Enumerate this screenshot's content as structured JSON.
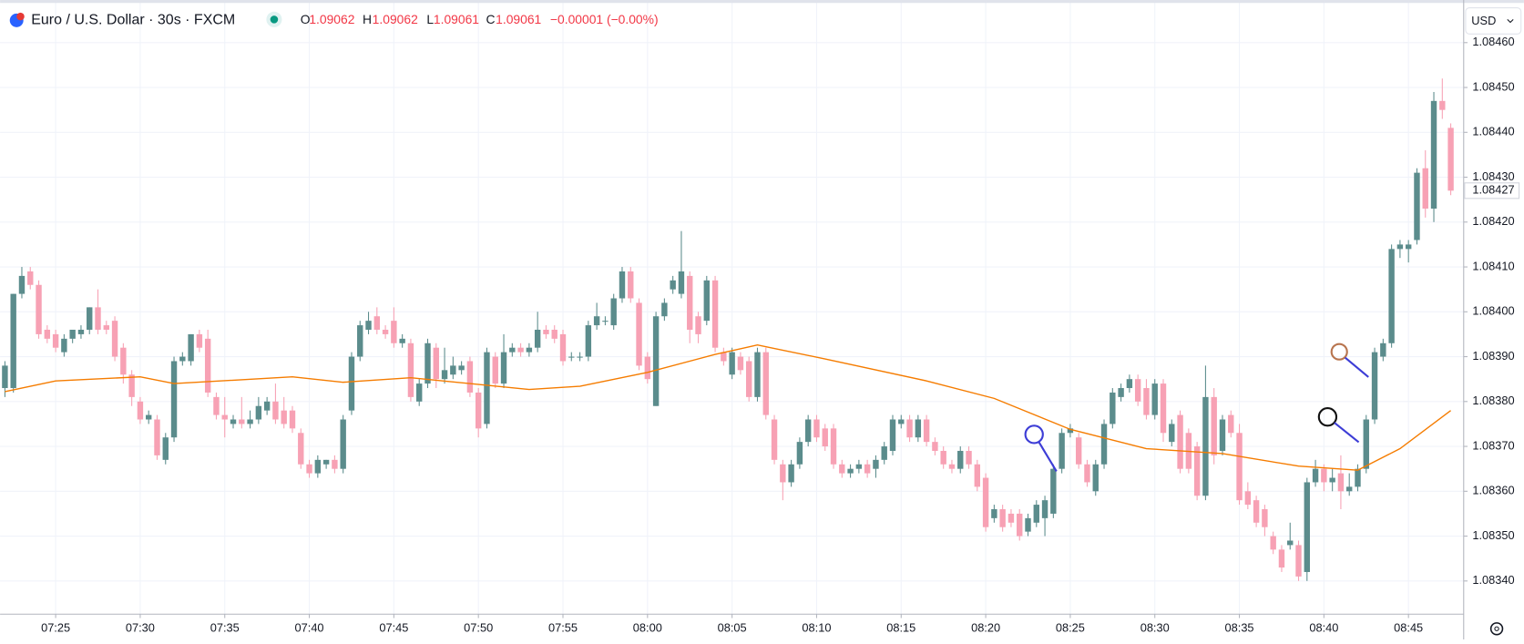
{
  "chart_data": {
    "type": "candlestick",
    "title": "Euro / U.S. Dollar · 30s · FXCM",
    "up_color": "#5b8c8c",
    "down_color": "#f7a1b4",
    "grid": true,
    "ylim": [
      1.083326,
      1.084695
    ],
    "yticks": [
      {
        "value": 1.0846,
        "label": "1.08460"
      },
      {
        "value": 1.0845,
        "label": "1.08450"
      },
      {
        "value": 1.0844,
        "label": "1.08440"
      },
      {
        "value": 1.0843,
        "label": "1.08430"
      },
      {
        "value": 1.0842,
        "label": "1.08420"
      },
      {
        "value": 1.0841,
        "label": "1.08410"
      },
      {
        "value": 1.084,
        "label": "1.08400"
      },
      {
        "value": 1.0839,
        "label": "1.08390"
      },
      {
        "value": 1.0838,
        "label": "1.08380"
      },
      {
        "value": 1.0837,
        "label": "1.08370"
      },
      {
        "value": 1.0836,
        "label": "1.08360"
      },
      {
        "value": 1.0835,
        "label": "1.08350"
      },
      {
        "value": 1.0834,
        "label": "1.08340"
      }
    ],
    "xticks": [
      {
        "value": 6,
        "label": "07:25"
      },
      {
        "value": 16,
        "label": "07:30"
      },
      {
        "value": 26,
        "label": "07:35"
      },
      {
        "value": 36,
        "label": "07:40"
      },
      {
        "value": 46,
        "label": "07:45"
      },
      {
        "value": 56,
        "label": "07:50"
      },
      {
        "value": 66,
        "label": "07:55"
      },
      {
        "value": 76,
        "label": "08:00"
      },
      {
        "value": 86,
        "label": "08:05"
      },
      {
        "value": 96,
        "label": "08:10"
      },
      {
        "value": 106,
        "label": "08:15"
      },
      {
        "value": 116,
        "label": "08:20"
      },
      {
        "value": 126,
        "label": "08:25"
      },
      {
        "value": 136,
        "label": "08:30"
      },
      {
        "value": 146,
        "label": "08:35"
      },
      {
        "value": 156,
        "label": "08:40"
      },
      {
        "value": 166,
        "label": "08:45"
      }
    ],
    "open": [
      1.08383,
      1.08383,
      1.08404,
      1.08409,
      1.08406,
      1.08396,
      1.08395,
      1.08391,
      1.08394,
      1.08395,
      1.08396,
      1.08401,
      1.08397,
      1.08398,
      1.08392,
      1.08386,
      1.0838,
      1.08376,
      1.08376,
      1.08367,
      1.08372,
      1.08389,
      1.08389,
      1.08395,
      1.08394,
      1.08381,
      1.08377,
      1.08375,
      1.08376,
      1.08375,
      1.08376,
      1.08378,
      1.0838,
      1.08378,
      1.08378,
      1.08373,
      1.08366,
      1.08364,
      1.08366,
      1.08367,
      1.08365,
      1.08378,
      1.0839,
      1.08396,
      1.08399,
      1.08396,
      1.08398,
      1.08393,
      1.08393,
      1.0838,
      1.08384,
      1.08392,
      1.08385,
      1.08386,
      1.08387,
      1.08389,
      1.08382,
      1.08375,
      1.0839,
      1.08384,
      1.08391,
      1.08392,
      1.08391,
      1.08392,
      1.08396,
      1.08396,
      1.08395,
      1.0839,
      1.0839,
      1.0839,
      1.08397,
      1.08398,
      1.08397,
      1.08403,
      1.08409,
      1.08402,
      1.0839,
      1.08379,
      1.08399,
      1.08405,
      1.08404,
      1.08408,
      1.08399,
      1.08398,
      1.08407,
      1.08391,
      1.08386,
      1.0839,
      1.08389,
      1.08381,
      1.08391,
      1.08376,
      1.08366,
      1.08362,
      1.08366,
      1.08371,
      1.08376,
      1.08374,
      1.08374,
      1.08366,
      1.08364,
      1.08365,
      1.08366,
      1.08365,
      1.08367,
      1.08369,
      1.08375,
      1.08376,
      1.08372,
      1.08376,
      1.08371,
      1.08369,
      1.08366,
      1.08365,
      1.08369,
      1.08366,
      1.08363,
      1.08354,
      1.08356,
      1.08355,
      1.08355,
      1.08351,
      1.08353,
      1.08354,
      1.08355,
      1.08365,
      1.08373,
      1.08372,
      1.08366,
      1.0836,
      1.08366,
      1.08375,
      1.08381,
      1.08383,
      1.08385,
      1.08383,
      1.08377,
      1.08384,
      1.08371,
      1.08377,
      1.08373,
      1.0837,
      1.08359,
      1.08381,
      1.08369,
      1.08377,
      1.08373,
      1.0836,
      1.08358,
      1.08356,
      1.0835,
      1.08347,
      1.08348,
      1.08348,
      1.08342,
      1.08362,
      1.08365,
      1.08362,
      1.08364,
      1.0836,
      1.08361,
      1.08365,
      1.08376,
      1.0839,
      1.08393,
      1.08414,
      1.08414,
      1.08416,
      1.08432,
      1.08423,
      1.08447,
      1.08441
    ],
    "high": [
      1.08389,
      1.08404,
      1.0841,
      1.0841,
      1.08407,
      1.08397,
      1.08396,
      1.08395,
      1.08396,
      1.08397,
      1.08401,
      1.08405,
      1.08398,
      1.08399,
      1.08393,
      1.08387,
      1.08381,
      1.08378,
      1.08377,
      1.08373,
      1.0839,
      1.08391,
      1.08395,
      1.08396,
      1.08396,
      1.08382,
      1.08381,
      1.08377,
      1.08381,
      1.08378,
      1.08381,
      1.08381,
      1.08384,
      1.08381,
      1.08379,
      1.08374,
      1.08367,
      1.08368,
      1.08367,
      1.08368,
      1.08377,
      1.08391,
      1.08398,
      1.084,
      1.08401,
      1.08397,
      1.08401,
      1.08395,
      1.08394,
      1.08385,
      1.08394,
      1.08393,
      1.08392,
      1.0839,
      1.08389,
      1.0839,
      1.08383,
      1.08392,
      1.08391,
      1.08395,
      1.08393,
      1.08393,
      1.08393,
      1.084,
      1.08397,
      1.08397,
      1.08396,
      1.08391,
      1.08391,
      1.08398,
      1.08402,
      1.08399,
      1.08404,
      1.0841,
      1.0841,
      1.08403,
      1.08391,
      1.084,
      1.08403,
      1.08408,
      1.08418,
      1.08409,
      1.084,
      1.08408,
      1.08408,
      1.08392,
      1.08392,
      1.08391,
      1.0839,
      1.08392,
      1.08392,
      1.08377,
      1.08367,
      1.08367,
      1.08372,
      1.08377,
      1.08377,
      1.08375,
      1.08375,
      1.08367,
      1.08366,
      1.08367,
      1.08367,
      1.08368,
      1.08371,
      1.08377,
      1.08377,
      1.08377,
      1.08377,
      1.08377,
      1.08372,
      1.0837,
      1.08367,
      1.0837,
      1.0837,
      1.08367,
      1.08364,
      1.08357,
      1.08357,
      1.08356,
      1.08356,
      1.08355,
      1.08358,
      1.08359,
      1.08366,
      1.08374,
      1.08375,
      1.08373,
      1.08367,
      1.08367,
      1.08376,
      1.08383,
      1.08384,
      1.08386,
      1.08386,
      1.08385,
      1.08385,
      1.08385,
      1.08376,
      1.08378,
      1.08374,
      1.08371,
      1.08388,
      1.08383,
      1.08377,
      1.08378,
      1.08375,
      1.08362,
      1.08359,
      1.08357,
      1.08351,
      1.08348,
      1.08353,
      1.08349,
      1.08363,
      1.08367,
      1.08366,
      1.08365,
      1.08368,
      1.08364,
      1.08366,
      1.08377,
      1.08392,
      1.08394,
      1.08415,
      1.08416,
      1.08416,
      1.08432,
      1.08436,
      1.08449,
      1.08452,
      1.08442
    ],
    "low": [
      1.08381,
      1.08382,
      1.08403,
      1.08405,
      1.08394,
      1.08393,
      1.08391,
      1.0839,
      1.08393,
      1.08394,
      1.08395,
      1.08395,
      1.08395,
      1.08389,
      1.08384,
      1.08379,
      1.08375,
      1.08375,
      1.08367,
      1.08366,
      1.08371,
      1.08388,
      1.08388,
      1.08391,
      1.08381,
      1.08376,
      1.08372,
      1.08374,
      1.08374,
      1.08374,
      1.08375,
      1.08377,
      1.08375,
      1.08374,
      1.08373,
      1.08365,
      1.08363,
      1.08363,
      1.08365,
      1.08364,
      1.08364,
      1.08377,
      1.08389,
      1.08395,
      1.08395,
      1.08394,
      1.08392,
      1.08392,
      1.0838,
      1.08379,
      1.08383,
      1.08383,
      1.08384,
      1.08385,
      1.08386,
      1.08381,
      1.08372,
      1.08374,
      1.08383,
      1.08383,
      1.0839,
      1.0839,
      1.0839,
      1.08391,
      1.08394,
      1.08393,
      1.08388,
      1.08389,
      1.08389,
      1.08389,
      1.08396,
      1.08397,
      1.08396,
      1.08402,
      1.08402,
      1.08387,
      1.08384,
      1.08379,
      1.08398,
      1.08404,
      1.08403,
      1.08393,
      1.08393,
      1.08397,
      1.08391,
      1.08388,
      1.08385,
      1.08386,
      1.0838,
      1.0838,
      1.08376,
      1.08366,
      1.08358,
      1.08361,
      1.08365,
      1.0837,
      1.08371,
      1.08369,
      1.08365,
      1.08363,
      1.08363,
      1.08364,
      1.08363,
      1.08363,
      1.08366,
      1.08368,
      1.08374,
      1.08371,
      1.08371,
      1.0837,
      1.08368,
      1.08365,
      1.08364,
      1.08364,
      1.08365,
      1.0836,
      1.08351,
      1.08353,
      1.08351,
      1.08352,
      1.08349,
      1.0835,
      1.08352,
      1.0835,
      1.08354,
      1.08364,
      1.08372,
      1.08365,
      1.08361,
      1.08359,
      1.08365,
      1.08374,
      1.0838,
      1.08382,
      1.08379,
      1.08376,
      1.08376,
      1.08371,
      1.0837,
      1.08364,
      1.08364,
      1.08358,
      1.08358,
      1.08366,
      1.08368,
      1.08372,
      1.08357,
      1.08356,
      1.08352,
      1.0835,
      1.08346,
      1.08342,
      1.08347,
      1.0834,
      1.0834,
      1.08361,
      1.0836,
      1.0836,
      1.08356,
      1.08359,
      1.0836,
      1.08364,
      1.08375,
      1.08389,
      1.08392,
      1.08412,
      1.08411,
      1.08415,
      1.08421,
      1.0842,
      1.08443,
      1.08426
    ],
    "close": [
      1.08388,
      1.08404,
      1.08408,
      1.08406,
      1.08395,
      1.08394,
      1.08392,
      1.08394,
      1.08396,
      1.08396,
      1.08401,
      1.08396,
      1.08396,
      1.0839,
      1.08386,
      1.08381,
      1.08376,
      1.08377,
      1.08368,
      1.08372,
      1.08389,
      1.0839,
      1.08395,
      1.08392,
      1.08382,
      1.08377,
      1.08376,
      1.08376,
      1.08375,
      1.08376,
      1.08379,
      1.0838,
      1.08376,
      1.08375,
      1.08374,
      1.08366,
      1.08364,
      1.08367,
      1.08367,
      1.08365,
      1.08376,
      1.0839,
      1.08397,
      1.08398,
      1.08396,
      1.08395,
      1.08393,
      1.08394,
      1.08381,
      1.08384,
      1.08393,
      1.08385,
      1.08387,
      1.08388,
      1.08388,
      1.08382,
      1.08374,
      1.08391,
      1.08384,
      1.08391,
      1.08392,
      1.08391,
      1.08392,
      1.08396,
      1.08395,
      1.08394,
      1.08389,
      1.0839,
      1.0839,
      1.08397,
      1.08399,
      1.08398,
      1.08403,
      1.08409,
      1.08403,
      1.08388,
      1.08385,
      1.08399,
      1.08402,
      1.08407,
      1.08409,
      1.08396,
      1.08395,
      1.08407,
      1.08392,
      1.08389,
      1.08391,
      1.08387,
      1.08381,
      1.08391,
      1.08377,
      1.08367,
      1.08362,
      1.08366,
      1.08371,
      1.08376,
      1.08372,
      1.0837,
      1.08366,
      1.08364,
      1.08365,
      1.08366,
      1.08364,
      1.08367,
      1.0837,
      1.08376,
      1.08376,
      1.08372,
      1.08376,
      1.08371,
      1.08369,
      1.08366,
      1.08365,
      1.08369,
      1.08366,
      1.08361,
      1.08352,
      1.08356,
      1.08352,
      1.08353,
      1.0835,
      1.08354,
      1.08357,
      1.08358,
      1.08365,
      1.08373,
      1.08374,
      1.08366,
      1.08362,
      1.08366,
      1.08375,
      1.08382,
      1.08383,
      1.08385,
      1.0838,
      1.08377,
      1.08384,
      1.08373,
      1.08375,
      1.08365,
      1.08365,
      1.08359,
      1.08381,
      1.08368,
      1.08376,
      1.08373,
      1.08358,
      1.08357,
      1.08353,
      1.08352,
      1.08347,
      1.08343,
      1.08349,
      1.08341,
      1.08362,
      1.08365,
      1.08362,
      1.08363,
      1.0836,
      1.08361,
      1.08365,
      1.08376,
      1.08391,
      1.08393,
      1.08414,
      1.08415,
      1.08415,
      1.08431,
      1.08423,
      1.08447,
      1.08445,
      1.08427
    ],
    "ma": {
      "color": "#f57c00",
      "x": [
        0,
        6,
        16,
        20,
        34,
        40,
        48,
        62,
        68,
        76,
        84,
        89,
        97,
        109,
        117,
        126,
        135,
        144,
        153,
        160,
        165,
        171
      ],
      "values": [
        1.083822,
        1.083846,
        1.083855,
        1.08384,
        1.083855,
        1.083843,
        1.083853,
        1.083827,
        1.083834,
        1.083865,
        1.083905,
        1.083926,
        1.083895,
        1.083846,
        1.083807,
        1.083738,
        1.083695,
        1.083684,
        1.083656,
        1.083647,
        1.083695,
        1.08378
      ]
    }
  },
  "header": {
    "ohlc": [
      {
        "key": "O",
        "value": "1.09062"
      },
      {
        "key": "H",
        "value": "1.09062"
      },
      {
        "key": "L",
        "value": "1.09061"
      },
      {
        "key": "C",
        "value": "1.09061"
      }
    ],
    "change": "−0.00001 (−0.00%)"
  },
  "currency": "USD"
}
